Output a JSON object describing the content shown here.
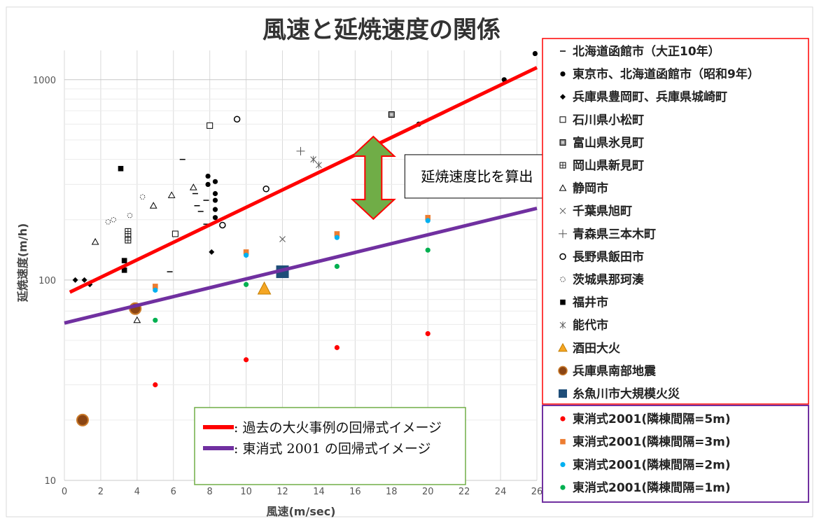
{
  "chart_data": {
    "type": "scatter",
    "title": "風速と延焼速度の関係",
    "xlabel": "風速(m/sec)",
    "ylabel": "延焼速度(m/h)",
    "xlim": [
      0,
      26
    ],
    "ylim": [
      10,
      1400
    ],
    "y_scale": "log",
    "x_ticks": [
      0,
      2,
      4,
      6,
      8,
      10,
      12,
      14,
      16,
      18,
      20,
      22,
      24,
      26
    ],
    "y_ticks": [
      10,
      100,
      1000
    ],
    "grid": true,
    "series": [
      {
        "name": "北海道函館市（大正10年）",
        "marker": "dash",
        "color": "#000000",
        "points": [
          [
            5.8,
            110
          ],
          [
            6.5,
            400
          ],
          [
            7.3,
            235
          ],
          [
            7.5,
            220
          ],
          [
            7.8,
            250
          ],
          [
            7.8,
            190
          ],
          [
            7.2,
            270
          ]
        ]
      },
      {
        "name": "東京市、北海道函館市（昭和9年）",
        "marker": "dot",
        "color": "#000000",
        "points": [
          [
            7.9,
            330
          ],
          [
            7.9,
            300
          ],
          [
            8.3,
            310
          ],
          [
            8.3,
            270
          ],
          [
            8.3,
            250
          ],
          [
            8.3,
            225
          ],
          [
            8.3,
            205
          ],
          [
            19.5,
            600
          ],
          [
            24.2,
            1000
          ],
          [
            25.9,
            1350
          ]
        ]
      },
      {
        "name": "兵庫県豊岡町、兵庫県城崎町",
        "marker": "diamond",
        "color": "#000000",
        "points": [
          [
            0.6,
            100
          ],
          [
            1.1,
            100
          ],
          [
            1.4,
            95
          ],
          [
            8.1,
            138
          ]
        ]
      },
      {
        "name": "石川県小松町",
        "marker": "square-open",
        "color": "#000000",
        "points": [
          [
            8.0,
            590
          ],
          [
            6.1,
            170
          ]
        ]
      },
      {
        "name": "富山県氷見町",
        "marker": "square-dotted",
        "color": "#000000",
        "points": [
          [
            18.0,
            670
          ]
        ]
      },
      {
        "name": "岡山県新見町",
        "marker": "square-grid",
        "color": "#000000",
        "points": [
          [
            3.5,
            175
          ],
          [
            3.5,
            165
          ],
          [
            3.5,
            158
          ]
        ]
      },
      {
        "name": "静岡市",
        "marker": "triangle-open",
        "color": "#000000",
        "points": [
          [
            1.7,
            155
          ],
          [
            4.9,
            235
          ],
          [
            5.9,
            265
          ],
          [
            7.1,
            290
          ],
          [
            4.0,
            63
          ]
        ]
      },
      {
        "name": "千葉県旭町",
        "marker": "x",
        "color": "#000000",
        "points": [
          [
            12.0,
            160
          ]
        ]
      },
      {
        "name": "青森県三本木町",
        "marker": "plus",
        "color": "#000000",
        "points": [
          [
            13.0,
            440
          ]
        ]
      },
      {
        "name": "長野県飯田市",
        "marker": "circle-open",
        "color": "#000000",
        "points": [
          [
            9.5,
            635
          ],
          [
            11.1,
            285
          ],
          [
            8.7,
            188
          ]
        ]
      },
      {
        "name": "茨城県那珂湊",
        "marker": "circle-dotted",
        "color": "#000000",
        "points": [
          [
            2.4,
            195
          ],
          [
            2.7,
            200
          ],
          [
            3.6,
            210
          ],
          [
            4.3,
            260
          ]
        ]
      },
      {
        "name": "福井市",
        "marker": "square",
        "color": "#000000",
        "points": [
          [
            3.1,
            360
          ],
          [
            3.3,
            125
          ],
          [
            3.3,
            112
          ]
        ]
      },
      {
        "name": "能代市",
        "marker": "asterisk",
        "color": "#000000",
        "points": [
          [
            13.7,
            400
          ],
          [
            14.0,
            375
          ]
        ]
      },
      {
        "name": "酒田大火",
        "marker": "triangle",
        "color": "#f5a623",
        "points": [
          [
            11.0,
            90
          ]
        ]
      },
      {
        "name": "兵庫県南部地震",
        "marker": "circle-large",
        "color": "#8b4513",
        "points": [
          [
            3.9,
            72
          ],
          [
            1.0,
            20
          ]
        ]
      },
      {
        "name": "糸魚川市大規模火災",
        "marker": "square-large",
        "color": "#1f4e79",
        "points": [
          [
            12.0,
            110
          ]
        ]
      },
      {
        "name": "東消式2001(隣棟間隔=5m)",
        "marker": "dot",
        "color": "#ff0000",
        "points": [
          [
            5,
            30
          ],
          [
            10,
            40
          ],
          [
            15,
            46
          ],
          [
            20,
            54
          ]
        ]
      },
      {
        "name": "東消式2001(隣棟間隔=3m)",
        "marker": "square",
        "color": "#ed7d31",
        "points": [
          [
            5,
            93
          ],
          [
            10,
            138
          ],
          [
            15,
            170
          ],
          [
            20,
            205
          ]
        ]
      },
      {
        "name": "東消式2001(隣棟間隔=2m)",
        "marker": "dot",
        "color": "#00b0f0",
        "points": [
          [
            5,
            89
          ],
          [
            10,
            133
          ],
          [
            15,
            163
          ],
          [
            20,
            198
          ]
        ]
      },
      {
        "name": "東消式2001(隣棟間隔=1m)",
        "marker": "dot",
        "color": "#00b050",
        "points": [
          [
            5,
            63
          ],
          [
            10,
            95
          ],
          [
            15,
            117
          ],
          [
            20,
            141
          ]
        ]
      }
    ],
    "regression_lines": [
      {
        "name": "過去の大火事例の回帰式イメージ",
        "color": "#ff0000",
        "x": [
          0.3,
          26
        ],
        "y": [
          87,
          1150
        ]
      },
      {
        "name": "東消式 2001 の回帰式イメージ",
        "color": "#7030a0",
        "x": [
          0,
          26
        ],
        "y": [
          61,
          228
        ]
      }
    ],
    "annotation": {
      "text": "延焼速度比を算出",
      "x": 17.0,
      "y_top": 480,
      "y_bottom": 222,
      "color": "#70ad47"
    }
  },
  "regression_legend": [
    ": 過去の大火事例の回帰式イメージ",
    ": 東消式 2001 の回帰式イメージ"
  ]
}
